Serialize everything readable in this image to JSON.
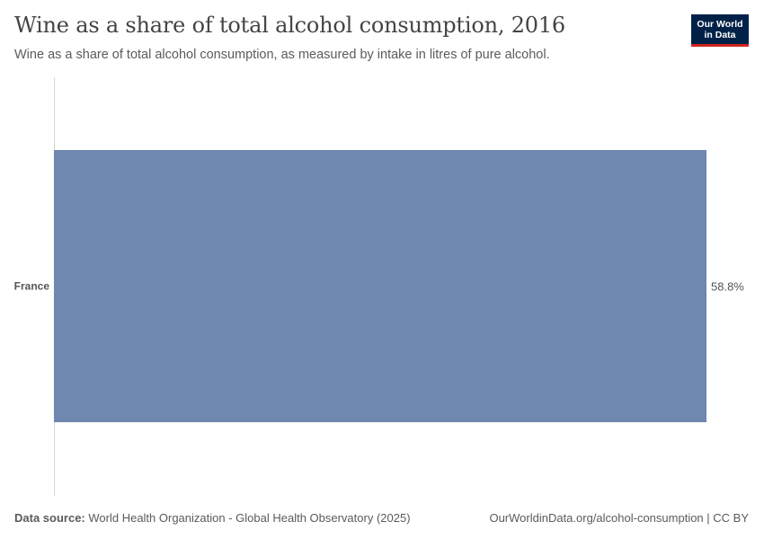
{
  "header": {
    "title": "Wine as a share of total alcohol consumption, 2016",
    "subtitle": "Wine as a share of total alcohol consumption, as measured by intake in litres of pure alcohol."
  },
  "logo": {
    "line1": "Our World",
    "line2": "in Data",
    "bg_color": "#002147",
    "accent_color": "#ce261e"
  },
  "chart_data": {
    "type": "bar",
    "orientation": "horizontal",
    "categories": [
      "France"
    ],
    "values": [
      58.8
    ],
    "value_labels": [
      "58.8%"
    ],
    "unit": "%",
    "xlim": [
      0,
      58.8
    ],
    "bar_color": "#6f88af",
    "grid": false
  },
  "footer": {
    "source_label": "Data source:",
    "source_text": "World Health Organization - Global Health Observatory (2025)",
    "url_text": "OurWorldinData.org/alcohol-consumption | CC BY"
  }
}
